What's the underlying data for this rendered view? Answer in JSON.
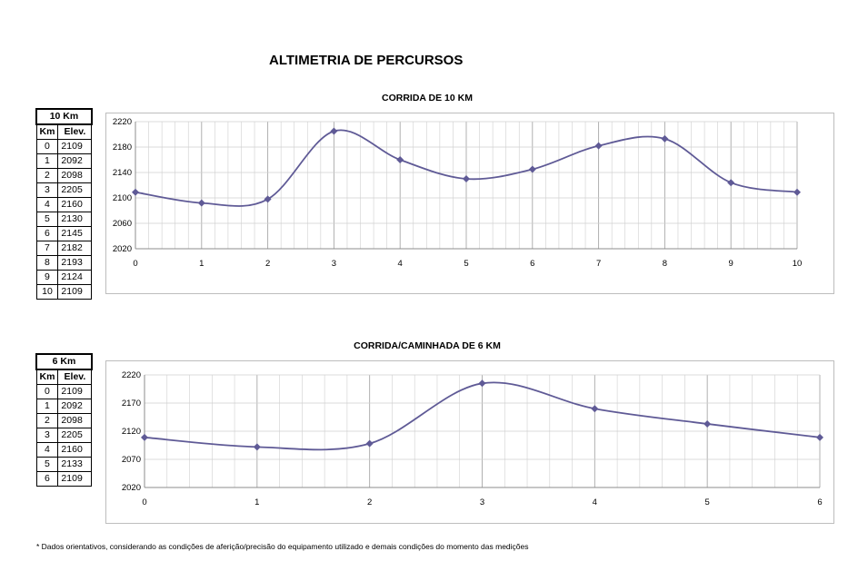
{
  "page_title": "ALTIMETRIA DE PERCURSOS",
  "footnote": "* Dados orientativos, considerando as condições de aferição/precisão do equipamento utilizado e demais condições do momento das medições",
  "tables": [
    {
      "title": "10 Km",
      "headers": [
        "Km",
        "Elev."
      ],
      "rows": [
        [
          "0",
          "2109"
        ],
        [
          "1",
          "2092"
        ],
        [
          "2",
          "2098"
        ],
        [
          "3",
          "2205"
        ],
        [
          "4",
          "2160"
        ],
        [
          "5",
          "2130"
        ],
        [
          "6",
          "2145"
        ],
        [
          "7",
          "2182"
        ],
        [
          "8",
          "2193"
        ],
        [
          "9",
          "2124"
        ],
        [
          "10",
          "2109"
        ]
      ]
    },
    {
      "title": "6 Km",
      "headers": [
        "Km",
        "Elev."
      ],
      "rows": [
        [
          "0",
          "2109"
        ],
        [
          "1",
          "2092"
        ],
        [
          "2",
          "2098"
        ],
        [
          "3",
          "2205"
        ],
        [
          "4",
          "2160"
        ],
        [
          "5",
          "2133"
        ],
        [
          "6",
          "2109"
        ]
      ]
    }
  ],
  "colors": {
    "series": "#5f5a96",
    "grid": "#cfcfcf",
    "border": "#bdbdbd"
  },
  "chart_data": [
    {
      "type": "line",
      "title": "CORRIDA DE 10 KM",
      "x": [
        0,
        1,
        2,
        3,
        4,
        5,
        6,
        7,
        8,
        9,
        10
      ],
      "values": [
        2109,
        2092,
        2098,
        2205,
        2160,
        2130,
        2145,
        2182,
        2193,
        2124,
        2109
      ],
      "xticks": [
        "0",
        "1",
        "2",
        "3",
        "4",
        "5",
        "6",
        "7",
        "8",
        "9",
        "10"
      ],
      "yticks": [
        "2020",
        "2060",
        "2100",
        "2140",
        "2180",
        "2220"
      ],
      "ylim": [
        2020,
        2220
      ],
      "xlim": [
        0,
        10
      ],
      "grid": true,
      "smooth": true,
      "marker": "diamond"
    },
    {
      "type": "line",
      "title": "CORRIDA/CAMINHADA DE 6 KM",
      "x": [
        0,
        1,
        2,
        3,
        4,
        5,
        6
      ],
      "values": [
        2109,
        2092,
        2098,
        2205,
        2160,
        2133,
        2109
      ],
      "xticks": [
        "0",
        "1",
        "2",
        "3",
        "4",
        "5",
        "6"
      ],
      "yticks": [
        "2020",
        "2070",
        "2120",
        "2170",
        "2220"
      ],
      "ylim": [
        2020,
        2220
      ],
      "xlim": [
        0,
        6
      ],
      "grid": true,
      "smooth": true,
      "marker": "diamond"
    }
  ]
}
